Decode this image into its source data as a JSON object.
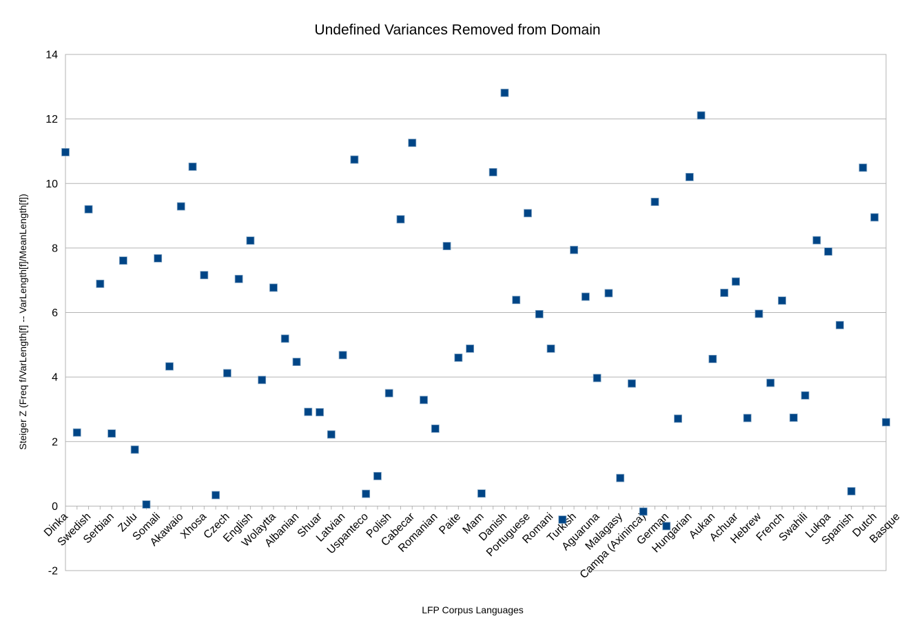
{
  "chart_data": {
    "type": "scatter",
    "title": "Undefined Variances Removed from Domain",
    "xlabel": "LFP Corpus Languages",
    "ylabel": "Steiger Z (Freq f/VarLength[f] -- VarLength[f]/MeanLength[f])",
    "ylim": [
      -2,
      14
    ],
    "y_ticks": [
      -2,
      0,
      2,
      4,
      6,
      8,
      10,
      12,
      14
    ],
    "grid": true,
    "legend": "none",
    "marker_color": "#004586",
    "marker": "square",
    "x_tick_labels": [
      "Dinka",
      "Swedish",
      "Serbian",
      "Zulu",
      "Somali",
      "Akawaio",
      "Xhosa",
      "Czech",
      "English",
      "Wolaytta",
      "Albanian",
      "Shuar",
      "Latvian",
      "Uspanteco",
      "Polish",
      "Cabecar",
      "Romanian",
      "Paite",
      "Mam",
      "Danish",
      "Portuguese",
      "Romani",
      "Turkish",
      "Aguaruna",
      "Malagasy",
      "Campa (Axininca)",
      "German",
      "Hungarian",
      "Aukan",
      "Achuar",
      "Hebrew",
      "French",
      "Swahili",
      "Lukpa",
      "Spanish",
      "Dutch",
      "Basque"
    ],
    "values": [
      10.97,
      2.28,
      9.2,
      6.89,
      2.25,
      7.61,
      1.75,
      0.05,
      7.68,
      4.33,
      9.29,
      10.52,
      7.16,
      0.34,
      4.12,
      7.04,
      8.23,
      3.91,
      6.77,
      5.19,
      4.47,
      2.92,
      2.91,
      2.22,
      4.68,
      10.74,
      0.38,
      0.93,
      3.5,
      8.89,
      11.26,
      3.29,
      2.4,
      8.06,
      4.6,
      4.88,
      0.39,
      10.35,
      12.81,
      6.39,
      9.08,
      5.95,
      4.88,
      -0.42,
      7.94,
      6.49,
      3.97,
      6.6,
      0.87,
      3.8,
      -0.17,
      9.43,
      -0.62,
      2.71,
      10.2,
      12.11,
      4.56,
      6.61,
      6.96,
      2.73,
      5.96,
      3.82,
      6.37,
      2.74,
      3.43,
      8.24,
      7.89,
      5.61,
      0.46,
      10.49,
      8.95,
      2.6
    ]
  }
}
